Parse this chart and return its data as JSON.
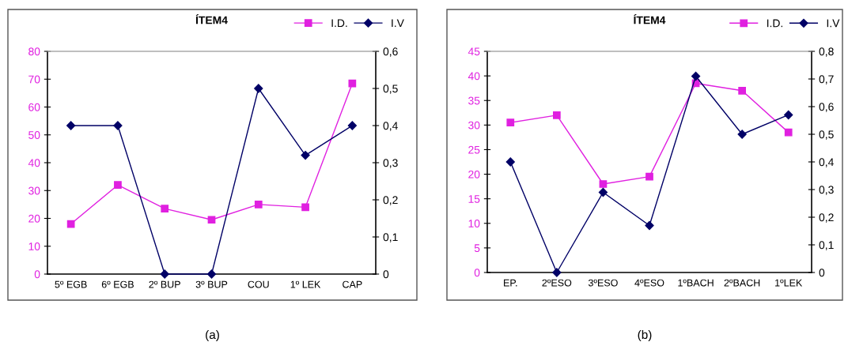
{
  "chart_data": [
    {
      "type": "line",
      "title": "ÍTEM4",
      "categories": [
        "5º EGB",
        "6º EGB",
        "2º BUP",
        "3º BUP",
        "COU",
        "1º LEK",
        "CAP"
      ],
      "series": [
        {
          "name": "I.D.",
          "color": "#e020e0",
          "marker": "square",
          "values": [
            18,
            32,
            23.5,
            19.5,
            25,
            24,
            68.5
          ]
        },
        {
          "name": "I.V",
          "color": "#000066",
          "marker": "diamond",
          "axis": "y2",
          "values": [
            0.4,
            0.4,
            0,
            0,
            0.5,
            0.32,
            0.4
          ]
        }
      ],
      "ylim": [
        0,
        80
      ],
      "yticks": [
        0,
        10,
        20,
        30,
        40,
        50,
        60,
        70,
        80
      ],
      "y2lim": [
        0,
        0.6
      ],
      "y2ticks": [
        {
          "value": 0,
          "label": "0"
        },
        {
          "value": 0.1,
          "label": "0,1"
        },
        {
          "value": 0.2,
          "label": "0,2"
        },
        {
          "value": 0.3,
          "label": "0,3"
        },
        {
          "value": 0.4,
          "label": "0,4"
        },
        {
          "value": 0.5,
          "label": "0,5"
        },
        {
          "value": 0.6,
          "label": "0,6"
        }
      ],
      "grid": false,
      "legend": "top right",
      "annotations": [
        "(a)"
      ]
    },
    {
      "type": "line",
      "title": "ÍTEM4",
      "categories": [
        "EP.",
        "2ºESO",
        "3ºESO",
        "4ºESO",
        "1ºBACH",
        "2ºBACH",
        "1ºLEK"
      ],
      "series": [
        {
          "name": "I.D.",
          "color": "#e020e0",
          "marker": "square",
          "values": [
            30.5,
            32,
            18,
            19.5,
            38.5,
            37,
            28.5
          ]
        },
        {
          "name": "I.V",
          "color": "#000066",
          "marker": "diamond",
          "axis": "y2",
          "values": [
            0.4,
            0,
            0.29,
            0.17,
            0.71,
            0.5,
            0.57
          ]
        }
      ],
      "ylim": [
        0,
        45
      ],
      "yticks": [
        0,
        5,
        10,
        15,
        20,
        25,
        30,
        35,
        40,
        45
      ],
      "y2lim": [
        0,
        0.8
      ],
      "y2ticks": [
        {
          "value": 0,
          "label": "0"
        },
        {
          "value": 0.1,
          "label": "0,1"
        },
        {
          "value": 0.2,
          "label": "0,2"
        },
        {
          "value": 0.3,
          "label": "0,3"
        },
        {
          "value": 0.4,
          "label": "0,4"
        },
        {
          "value": 0.5,
          "label": "0,5"
        },
        {
          "value": 0.6,
          "label": "0,6"
        },
        {
          "value": 0.7,
          "label": "0,7"
        },
        {
          "value": 0.8,
          "label": "0,8"
        }
      ],
      "grid": false,
      "legend": "top right",
      "annotations": [
        "(b)"
      ]
    }
  ]
}
